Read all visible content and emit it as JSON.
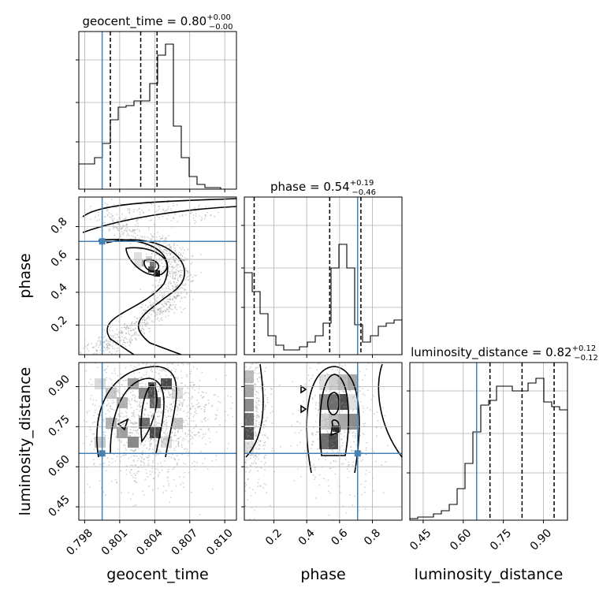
{
  "chart_data": {
    "type": "corner",
    "parameters": [
      {
        "name": "geocent_time",
        "range": [
          0.7975,
          0.811
        ],
        "ticks": [
          0.798,
          0.801,
          0.804,
          0.807,
          0.81
        ],
        "tick_labels": [
          "0.798",
          "0.801",
          "0.804",
          "0.807",
          "0.810"
        ],
        "injection": 0.7995,
        "quantiles": [
          0.8002,
          0.8028,
          0.8042
        ]
      },
      {
        "name": "phase",
        "range": [
          0.02,
          0.98
        ],
        "ticks": [
          0.2,
          0.4,
          0.6,
          0.8
        ],
        "tick_labels": [
          "0.2",
          "0.4",
          "0.6",
          "0.8"
        ],
        "injection": 0.71,
        "quantiles": [
          0.08,
          0.54,
          0.73
        ]
      },
      {
        "name": "luminosity_distance",
        "range": [
          0.4,
          0.99
        ],
        "ticks": [
          0.45,
          0.6,
          0.75,
          0.9
        ],
        "tick_labels": [
          "0.45",
          "0.60",
          "0.75",
          "0.90"
        ],
        "injection": 0.65,
        "quantiles": [
          0.7,
          0.82,
          0.94
        ]
      }
    ],
    "titles": [
      {
        "text": "geocent_time = 0.80",
        "sup": "+0.00",
        "sub": "−0.00"
      },
      {
        "text": "phase = 0.54",
        "sup": "+0.19",
        "sub": "−0.46"
      },
      {
        "text": "luminosity_distance = 0.82",
        "sup": "+0.12",
        "sub": "−0.12"
      }
    ],
    "histograms": [
      [
        0.16,
        0.16,
        0.2,
        0.29,
        0.44,
        0.52,
        0.53,
        0.56,
        0.56,
        0.67,
        0.85,
        0.92,
        0.4,
        0.2,
        0.08,
        0.03,
        0.01,
        0.01,
        0,
        0
      ],
      [
        0.52,
        0.4,
        0.26,
        0.12,
        0.06,
        0.03,
        0.03,
        0.05,
        0.08,
        0.12,
        0.2,
        0.55,
        0.7,
        0.55,
        0.19,
        0.08,
        0.12,
        0.18,
        0.2,
        0.22
      ],
      [
        0.01,
        0.02,
        0.02,
        0.04,
        0.06,
        0.1,
        0.2,
        0.36,
        0.56,
        0.73,
        0.76,
        0.85,
        0.85,
        0.82,
        0.82,
        0.87,
        0.9,
        0.75,
        0.72,
        0.7
      ]
    ],
    "grid": true,
    "injection_color": "#4682b4"
  }
}
